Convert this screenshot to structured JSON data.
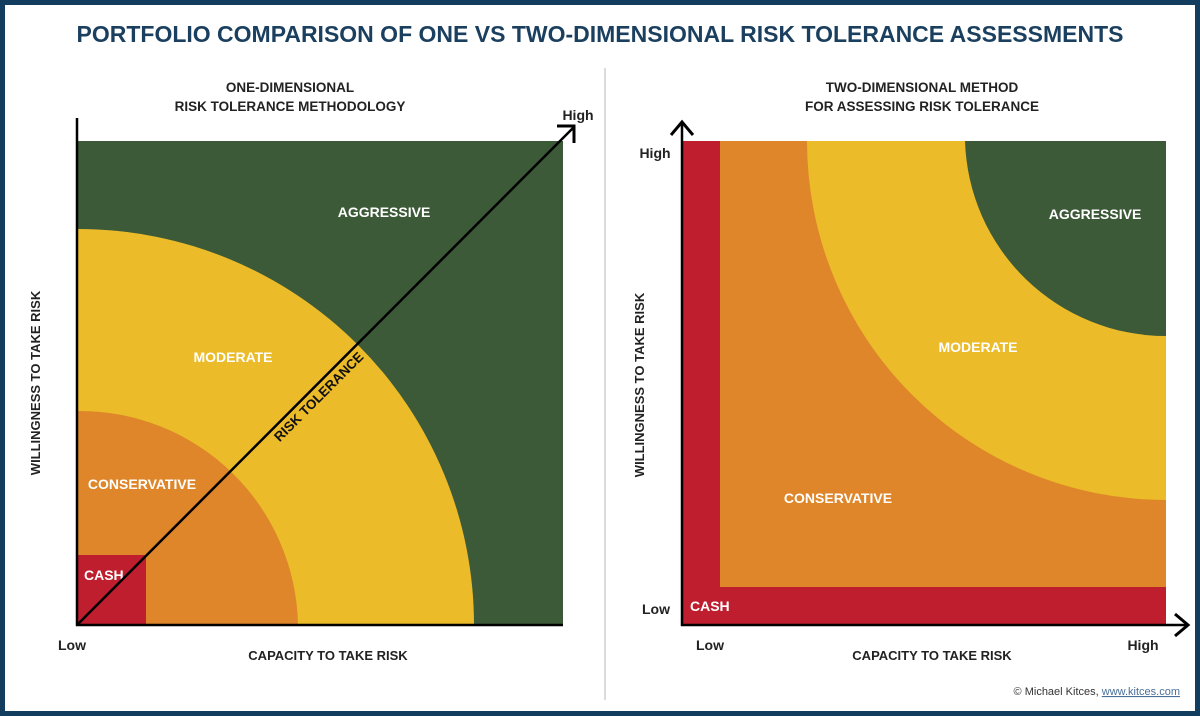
{
  "title": "PORTFOLIO COMPARISON OF ONE VS TWO-DIMENSIONAL RISK TOLERANCE ASSESSMENTS",
  "colors": {
    "border": "#123d5e",
    "title": "#1b3f5e",
    "aggressive": "#3d5a38",
    "moderate": "#ecbb29",
    "conservative": "#de8629",
    "cash": "#be1e2d"
  },
  "left": {
    "title_line1": "ONE-DIMENSIONAL",
    "title_line2": "RISK TOLERANCE METHODOLOGY",
    "y_axis_label": "WILLINGNESS TO TAKE RISK",
    "x_axis_label": "CAPACITY TO TAKE RISK",
    "low": "Low",
    "high": "High",
    "diagonal_label": "RISK TOLERANCE",
    "zones": {
      "aggressive": "AGGRESSIVE",
      "moderate": "MODERATE",
      "conservative": "CONSERVATIVE",
      "cash": "CASH"
    }
  },
  "right": {
    "title_line1": "TWO-DIMENSIONAL METHOD",
    "title_line2": "FOR ASSESSING RISK TOLERANCE",
    "y_axis_label": "WILLINGNESS TO TAKE RISK",
    "x_axis_label": "CAPACITY TO TAKE RISK",
    "y_high": "High",
    "y_low": "Low",
    "x_low": "Low",
    "x_high": "High",
    "zones": {
      "aggressive": "AGGRESSIVE",
      "moderate": "MODERATE",
      "conservative": "CONSERVATIVE",
      "cash": "CASH"
    }
  },
  "credit": {
    "prefix": "© Michael Kitces, ",
    "link": "www.kitces.com"
  }
}
